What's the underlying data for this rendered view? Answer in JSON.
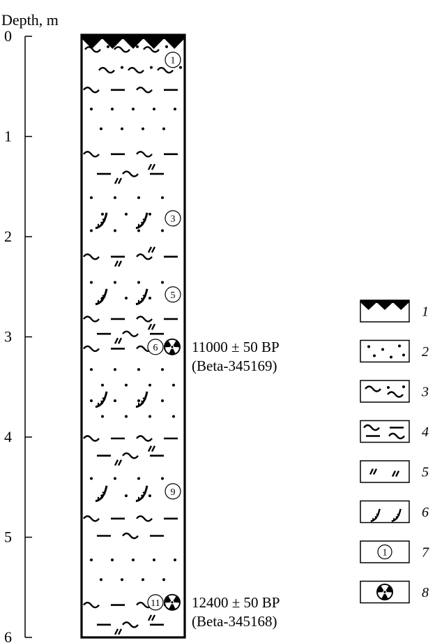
{
  "axis": {
    "title": "Depth, m",
    "ticks": [
      {
        "value": 0,
        "label": "0"
      },
      {
        "value": 1,
        "label": "1"
      },
      {
        "value": 2,
        "label": "2"
      },
      {
        "value": 3,
        "label": "3"
      },
      {
        "value": 4,
        "label": "4"
      },
      {
        "value": 5,
        "label": "5"
      },
      {
        "value": 6,
        "label": "6"
      }
    ]
  },
  "column": {
    "layers": [
      {
        "label": "1",
        "top": 0.0,
        "bottom": 0.47,
        "kind": "dots-waves"
      },
      {
        "label": "",
        "top": 0.47,
        "bottom": 0.6,
        "kind": "dash-waves"
      },
      {
        "label": "",
        "top": 0.6,
        "bottom": 1.05,
        "kind": "dots"
      },
      {
        "label": "",
        "top": 1.05,
        "bottom": 1.5,
        "kind": "dash-waves-slash"
      },
      {
        "label": "3",
        "top": 1.5,
        "bottom": 2.05,
        "kind": "dots-hooks"
      },
      {
        "label": "",
        "top": 2.05,
        "bottom": 2.35,
        "kind": "dash-waves-slash"
      },
      {
        "label": "5",
        "top": 2.35,
        "bottom": 2.72,
        "kind": "dots-hooks"
      },
      {
        "label": "6",
        "top": 2.72,
        "bottom": 3.22,
        "kind": "dash-waves-slash"
      },
      {
        "label": "",
        "top": 3.22,
        "bottom": 3.9,
        "kind": "dots-hooks"
      },
      {
        "label": "",
        "top": 3.9,
        "bottom": 4.3,
        "kind": "dash-waves-slash"
      },
      {
        "label": "9",
        "top": 4.3,
        "bottom": 4.7,
        "kind": "dots-hooks"
      },
      {
        "label": "",
        "top": 4.7,
        "bottom": 5.1,
        "kind": "dash-waves"
      },
      {
        "label": "",
        "top": 5.1,
        "bottom": 5.55,
        "kind": "dots"
      },
      {
        "label": "11",
        "top": 5.55,
        "bottom": 6.0,
        "kind": "dash-waves-slash"
      }
    ],
    "dates": [
      {
        "depth": 3.1,
        "age": "11000 ± 50 BP",
        "lab": "(Beta-345169)"
      },
      {
        "depth": 5.65,
        "age": "12400 ± 50 BP",
        "lab": "(Beta-345168)"
      }
    ]
  },
  "legend": [
    {
      "symbol": "soil-turf",
      "number": "1"
    },
    {
      "symbol": "sand-dots",
      "number": "2"
    },
    {
      "symbol": "sandy-loam-waves",
      "number": "3"
    },
    {
      "symbol": "loam-dash-waves",
      "number": "4"
    },
    {
      "symbol": "double-slash",
      "number": "5"
    },
    {
      "symbol": "hook-marks",
      "number": "6"
    },
    {
      "symbol": "sample-number",
      "number": "7",
      "sample_label": "1"
    },
    {
      "symbol": "radiocarbon-date",
      "number": "8"
    }
  ]
}
